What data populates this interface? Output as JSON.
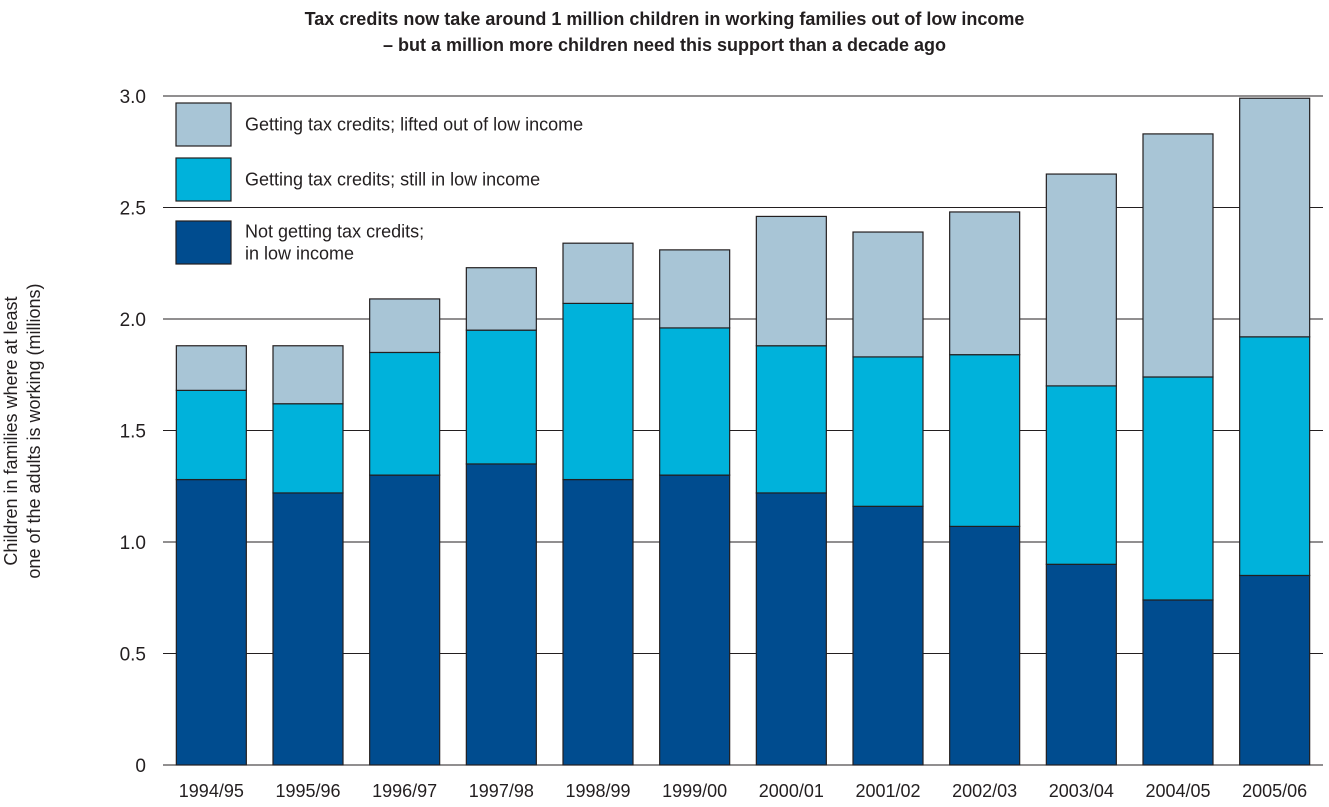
{
  "title": {
    "line1": "Tax credits now take around 1 million children in working families out of low income",
    "line2": "– but a million more children need this support than a decade ago"
  },
  "chart_data": {
    "type": "bar",
    "stacked": true,
    "title": "Tax credits now take around 1 million children in working families out of low income – but a million more children need this support than a decade ago",
    "ylabel_lines": [
      "Children in families where at least",
      "one of the adults is working (millions)"
    ],
    "xlabel": "",
    "ylim": [
      0,
      3.0
    ],
    "yticks": [
      "0",
      "0.5",
      "1.0",
      "1.5",
      "2.0",
      "2.5",
      "3.0"
    ],
    "grid": true,
    "legend_position": "top-left",
    "categories": [
      "1994/95",
      "1995/96",
      "1996/97",
      "1997/98",
      "1998/99",
      "1999/00",
      "2000/01",
      "2001/02",
      "2002/03",
      "2003/04",
      "2004/05",
      "2005/06"
    ],
    "series": [
      {
        "name": "Not getting tax credits; in low income",
        "legend_lines": [
          "Not getting tax credits;",
          "in low income"
        ],
        "color": "#004c8f",
        "values": [
          1.28,
          1.22,
          1.3,
          1.35,
          1.28,
          1.3,
          1.22,
          1.16,
          1.07,
          0.9,
          0.74,
          0.85
        ]
      },
      {
        "name": "Getting tax credits; still in low income",
        "legend_lines": [
          "Getting tax credits; still in low income"
        ],
        "color": "#00b2db",
        "values": [
          0.4,
          0.4,
          0.55,
          0.6,
          0.79,
          0.66,
          0.66,
          0.67,
          0.77,
          0.8,
          1.0,
          1.07
        ]
      },
      {
        "name": "Getting tax credits; lifted out of low income",
        "legend_lines": [
          "Getting tax credits; lifted out of low income"
        ],
        "color": "#a8c5d6",
        "values": [
          0.2,
          0.26,
          0.24,
          0.28,
          0.27,
          0.35,
          0.58,
          0.56,
          0.64,
          0.95,
          1.09,
          1.07
        ]
      }
    ]
  }
}
